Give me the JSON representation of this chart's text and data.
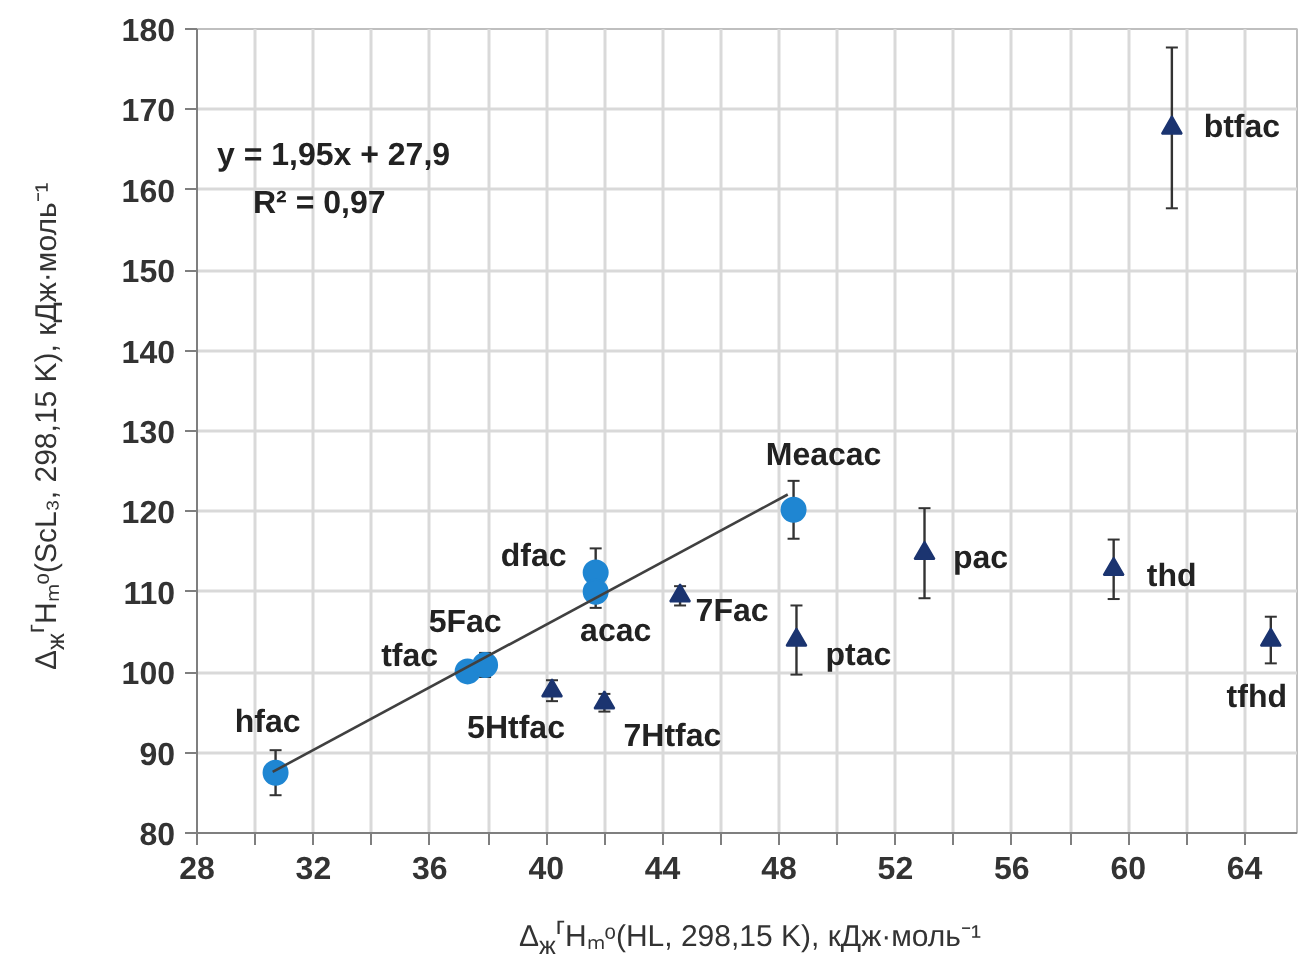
{
  "chart_data": {
    "type": "scatter",
    "xlabel": "Δ$_{ж}$$^{г}$Hₘᵒ(HL, 298,15 K), кДж·моль⁻¹",
    "ylabel": "Δ$_{ж}$$^{г}$Hₘᵒ(ScL₃, 298,15 K), кДж·моль⁻¹",
    "xlim": [
      28,
      65.8
    ],
    "ylim": [
      80,
      180
    ],
    "xticks": [
      28,
      {
        "value": 30,
        "label": null
      },
      32,
      {
        "value": 34,
        "label": null
      },
      36,
      {
        "value": 38,
        "label": null
      },
      40,
      {
        "value": 42,
        "label": null
      },
      44,
      {
        "value": 46,
        "label": null
      },
      48,
      {
        "value": 50,
        "label": null
      },
      52,
      {
        "value": 54,
        "label": null
      },
      56,
      {
        "value": 58,
        "label": null
      },
      60,
      {
        "value": 62,
        "label": null
      },
      64
    ],
    "yticks": [
      80,
      90,
      100,
      110,
      120,
      130,
      140,
      150,
      160,
      170,
      180
    ],
    "grid": true,
    "series": [
      {
        "marker": "circle",
        "color": "#1f86d2",
        "x": [
          30.7,
          37.3,
          37.9,
          41.7,
          41.7,
          48.5
        ],
        "values": [
          87.5,
          100.1,
          100.9,
          112.4,
          110.0,
          120.2
        ],
        "errors": [
          2.8,
          1.0,
          1.5,
          3.0,
          2.0,
          3.6
        ]
      },
      {
        "marker": "triangle",
        "color": "#1b3470",
        "x": [
          40.2,
          42.0,
          44.6,
          48.6,
          53.0,
          59.5,
          64.9,
          61.5
        ],
        "values": [
          97.7,
          96.2,
          109.5,
          104.0,
          114.8,
          112.8,
          104.0,
          167.7
        ],
        "errors": [
          1.3,
          1.1,
          1.2,
          4.3,
          5.6,
          3.7,
          2.9,
          10.0
        ]
      },
      {
        "type": "line",
        "color": "#404040",
        "x": [
          30.6,
          48.3
        ],
        "values": [
          87.6,
          122.1
        ]
      }
    ],
    "annotations": [
      {
        "text": "hfac",
        "x": 30.7,
        "y": 87.5
      },
      {
        "text": "tfac",
        "x": 37.3,
        "y": 100.1
      },
      {
        "text": "5Fac",
        "x": 37.9,
        "y": 100.9
      },
      {
        "text": "dfac",
        "x": 41.7,
        "y": 112.4
      },
      {
        "text": "acac",
        "x": 41.7,
        "y": 110.0
      },
      {
        "text": "Meacac",
        "x": 48.5,
        "y": 120.2
      },
      {
        "text": "5Htfac",
        "x": 40.2,
        "y": 97.7
      },
      {
        "text": "7Htfac",
        "x": 42.0,
        "y": 96.2
      },
      {
        "text": "7Fac",
        "x": 44.6,
        "y": 109.5
      },
      {
        "text": "ptac",
        "x": 48.6,
        "y": 104.0
      },
      {
        "text": "pac",
        "x": 53.0,
        "y": 114.8
      },
      {
        "text": "thd",
        "x": 59.5,
        "y": 112.8
      },
      {
        "text": "tfhd",
        "x": 64.9,
        "y": 104.0
      },
      {
        "text": "btfac",
        "x": 61.5,
        "y": 167.7
      },
      "y = 1,95x + 27,9",
      "R² = 0,97"
    ]
  }
}
